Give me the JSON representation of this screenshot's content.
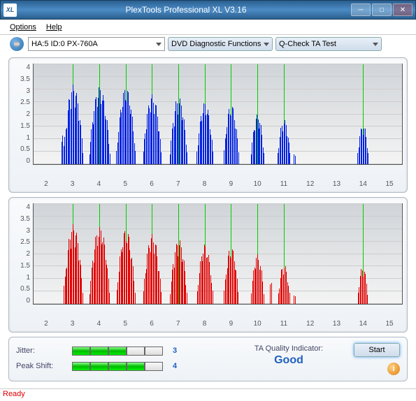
{
  "window": {
    "title": "PlexTools Professional XL V3.16",
    "icon_text": "XL"
  },
  "menu": {
    "options": "Options",
    "help": "Help"
  },
  "toolbar": {
    "device": "HA:5 ID:0  PX-760A",
    "mode": "DVD Diagnostic Functions",
    "test": "Q-Check TA Test"
  },
  "chart_common": {
    "x_ticks": [
      2,
      3,
      4,
      5,
      6,
      7,
      8,
      9,
      10,
      11,
      12,
      13,
      14,
      15
    ],
    "y_ticks": [
      0,
      0.5,
      1,
      1.5,
      2,
      2.5,
      3,
      3.5,
      4
    ],
    "ylim": [
      0,
      4
    ],
    "xlim": [
      1.5,
      15.5
    ],
    "vlines": [
      3,
      4,
      5,
      6,
      7,
      8,
      9,
      10,
      11,
      14
    ],
    "grid_color": "#cccccc",
    "vline_color": "#00cc00",
    "bg_top": "#d0d4d8",
    "bg_bot": "#f4f4f4"
  },
  "chart1": {
    "type": "area",
    "color": "#0020e0",
    "clusters": [
      {
        "c": 2.6,
        "w": 0.18,
        "h": 1.2
      },
      {
        "c": 3.0,
        "w": 0.8,
        "h": 3.2
      },
      {
        "c": 4.0,
        "w": 0.85,
        "h": 3.1
      },
      {
        "c": 5.0,
        "w": 0.78,
        "h": 3.1
      },
      {
        "c": 6.0,
        "w": 0.76,
        "h": 2.8
      },
      {
        "c": 7.0,
        "w": 0.72,
        "h": 2.7
      },
      {
        "c": 8.0,
        "w": 0.68,
        "h": 2.5
      },
      {
        "c": 9.0,
        "w": 0.62,
        "h": 2.4
      },
      {
        "c": 10.0,
        "w": 0.56,
        "h": 2.0
      },
      {
        "c": 11.0,
        "w": 0.55,
        "h": 1.8
      },
      {
        "c": 11.4,
        "w": 0.14,
        "h": 0.45
      },
      {
        "c": 14.0,
        "w": 0.48,
        "h": 1.6
      }
    ]
  },
  "chart2": {
    "type": "area",
    "color": "#e00000",
    "clusters": [
      {
        "c": 2.7,
        "w": 0.18,
        "h": 1.0
      },
      {
        "c": 3.0,
        "w": 0.78,
        "h": 3.2
      },
      {
        "c": 4.0,
        "w": 0.82,
        "h": 3.1
      },
      {
        "c": 5.0,
        "w": 0.76,
        "h": 3.0
      },
      {
        "c": 6.0,
        "w": 0.74,
        "h": 2.8
      },
      {
        "c": 7.0,
        "w": 0.7,
        "h": 2.6
      },
      {
        "c": 8.0,
        "w": 0.66,
        "h": 2.4
      },
      {
        "c": 9.0,
        "w": 0.6,
        "h": 2.3
      },
      {
        "c": 10.0,
        "w": 0.55,
        "h": 2.0
      },
      {
        "c": 10.5,
        "w": 0.14,
        "h": 1.1
      },
      {
        "c": 11.0,
        "w": 0.5,
        "h": 1.6
      },
      {
        "c": 11.4,
        "w": 0.14,
        "h": 0.4
      },
      {
        "c": 14.0,
        "w": 0.44,
        "h": 1.5
      }
    ]
  },
  "results": {
    "jitter": {
      "label": "Jitter:",
      "value": "3",
      "max": 5
    },
    "peakshift": {
      "label": "Peak Shift:",
      "value": "4",
      "max": 5
    },
    "quality_label": "TA Quality Indicator:",
    "quality_value": "Good",
    "start": "Start"
  },
  "status": "Ready"
}
